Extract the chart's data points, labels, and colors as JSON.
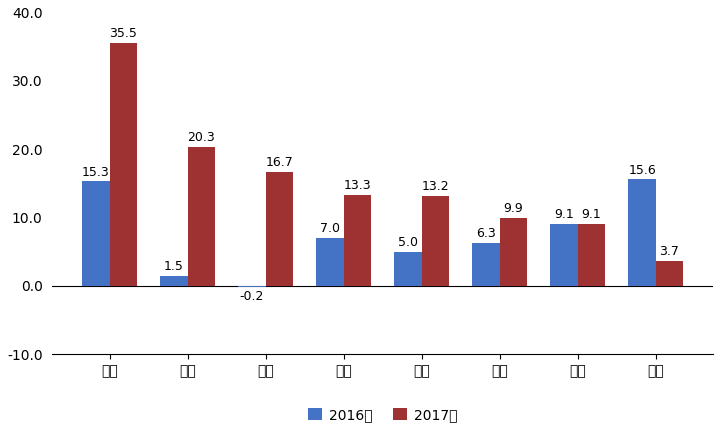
{
  "categories": [
    "成都",
    "西安",
    "武汉",
    "杭州",
    "南京",
    "重庆",
    "郑州",
    "天津"
  ],
  "values_2016": [
    15.3,
    1.5,
    -0.2,
    7.0,
    5.0,
    6.3,
    9.1,
    15.6
  ],
  "values_2017": [
    35.5,
    20.3,
    16.7,
    13.3,
    13.2,
    9.9,
    9.1,
    3.7
  ],
  "color_2016": "#4472C4",
  "color_2017": "#9E3132",
  "legend_labels": [
    "2016年",
    "2017年"
  ],
  "ylim": [
    -10,
    40
  ],
  "yticks": [
    -10.0,
    0.0,
    10.0,
    20.0,
    30.0,
    40.0
  ],
  "bar_width": 0.35,
  "label_fontsize": 9,
  "tick_fontsize": 10,
  "legend_fontsize": 10,
  "background_color": "#ffffff"
}
